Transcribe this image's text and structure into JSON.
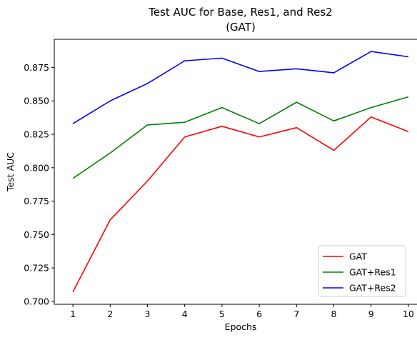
{
  "chart_data": {
    "type": "line",
    "title": "Test AUC for Base, Res1, and Res2",
    "subtitle": "(GAT)",
    "xlabel": "Epochs",
    "ylabel": "Test AUC",
    "x": [
      1,
      2,
      3,
      4,
      5,
      6,
      7,
      8,
      9,
      10
    ],
    "xlim": [
      0.5,
      10.5
    ],
    "ylim": [
      0.6978,
      0.8961
    ],
    "yticks": [
      0.7,
      0.725,
      0.75,
      0.775,
      0.8,
      0.825,
      0.85,
      0.875
    ],
    "ytick_labels": [
      "0.700",
      "0.725",
      "0.750",
      "0.775",
      "0.800",
      "0.825",
      "0.850",
      "0.875"
    ],
    "xtick_labels": [
      "1",
      "2",
      "3",
      "4",
      "5",
      "6",
      "7",
      "8",
      "9",
      "10"
    ],
    "grid": false,
    "legend_position": "bottom-right",
    "series": [
      {
        "name": "GAT",
        "color": "#ff0000",
        "values": [
          0.707,
          0.761,
          0.79,
          0.823,
          0.831,
          0.823,
          0.83,
          0.813,
          0.838,
          0.827
        ]
      },
      {
        "name": "GAT+Res1",
        "color": "#008000",
        "values": [
          0.792,
          0.811,
          0.832,
          0.834,
          0.845,
          0.833,
          0.849,
          0.835,
          0.845,
          0.853
        ]
      },
      {
        "name": "GAT+Res2",
        "color": "#0000ff",
        "values": [
          0.833,
          0.85,
          0.863,
          0.88,
          0.882,
          0.872,
          0.874,
          0.871,
          0.887,
          0.883
        ]
      }
    ]
  }
}
